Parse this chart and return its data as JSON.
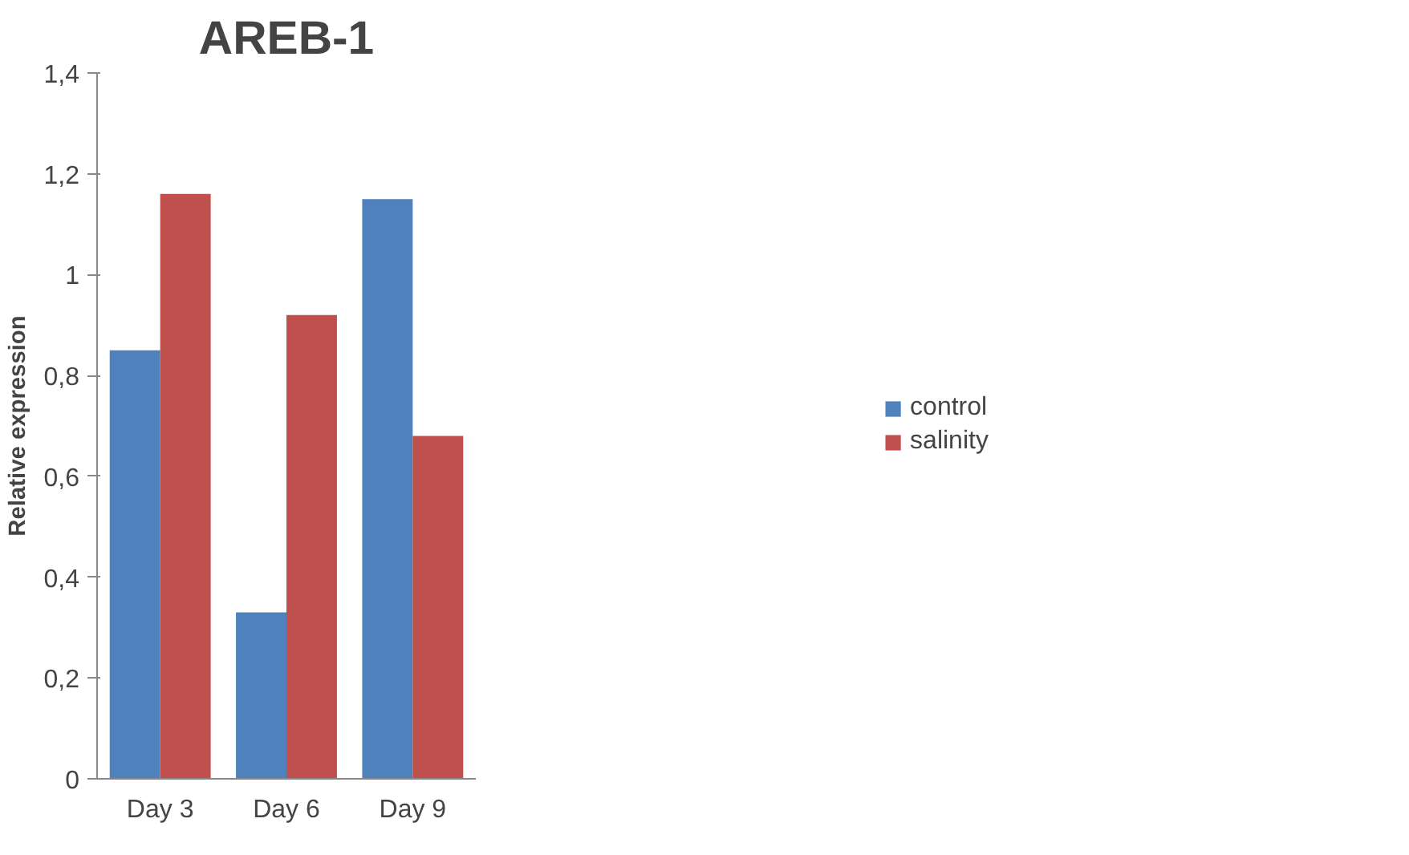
{
  "chart_data": {
    "type": "bar",
    "title": "AREB-1",
    "ylabel": "Relative expression",
    "categories": [
      "Day 3",
      "Day 6",
      "Day 9"
    ],
    "series": [
      {
        "name": "control",
        "color": "#4f81bd",
        "values": [
          0.85,
          0.33,
          1.15
        ]
      },
      {
        "name": "salinity",
        "color": "#c0504d",
        "values": [
          1.16,
          0.92,
          0.68
        ]
      }
    ],
    "ylim": [
      0,
      1.4
    ],
    "yticks": [
      0,
      {
        "value": 0.2,
        "label": "0,2"
      },
      {
        "value": 0.4,
        "label": "0,4"
      },
      {
        "value": 0.6,
        "label": "0,6"
      },
      {
        "value": 0.8,
        "label": "0,8"
      },
      1,
      {
        "value": 1.2,
        "label": "1,2"
      },
      {
        "value": 1.4,
        "label": "1,4"
      }
    ],
    "grid": false,
    "legend": "right"
  }
}
